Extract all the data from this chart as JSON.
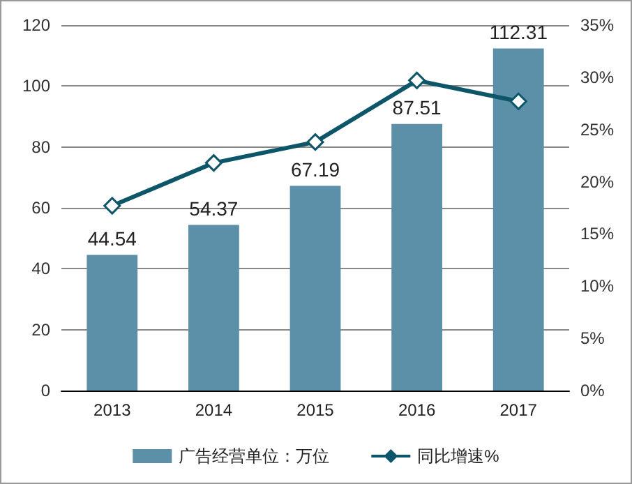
{
  "chart_data": {
    "type": "bar",
    "categories": [
      "2013",
      "2014",
      "2015",
      "2016",
      "2017"
    ],
    "series": [
      {
        "name": "广告经营单位：万位",
        "color": "#5b90a8",
        "values": [
          44.54,
          54.37,
          67.19,
          87.51,
          112.31
        ],
        "value_labels": [
          "44.54",
          "54.37",
          "67.19",
          "87.51",
          "112.31"
        ]
      },
      {
        "name": "同比增速%",
        "type": "line",
        "axis": "y2",
        "color": "#0d5669",
        "values": [
          17.7,
          21.8,
          23.8,
          29.7,
          27.7
        ],
        "marker": "diamond"
      }
    ],
    "ylim": [
      0,
      120
    ],
    "yticks": [
      0,
      20,
      40,
      60,
      80,
      100,
      120
    ],
    "y2lim": [
      0,
      35
    ],
    "y2ticks": [
      {
        "value": 0,
        "label": "0%"
      },
      {
        "value": 5,
        "label": "5%"
      },
      {
        "value": 10,
        "label": "10%"
      },
      {
        "value": 15,
        "label": "15%"
      },
      {
        "value": 20,
        "label": "20%"
      },
      {
        "value": 25,
        "label": "25%"
      },
      {
        "value": 30,
        "label": "30%"
      },
      {
        "value": 35,
        "label": "35%"
      }
    ],
    "grid": "y",
    "legend": "bottom"
  }
}
